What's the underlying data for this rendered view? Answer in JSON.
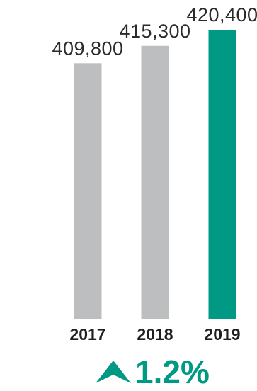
{
  "chart_data": {
    "type": "bar",
    "categories": [
      "2017",
      "2018",
      "2019"
    ],
    "values": [
      409800,
      415300,
      420400
    ],
    "value_labels": [
      "409,800",
      "415,300",
      "420,400"
    ],
    "bar_colors": [
      "#bcbec0",
      "#bcbec0",
      "#009a84"
    ],
    "ylim": [
      329000,
      420400
    ],
    "xlabel": "",
    "ylabel": "",
    "title": "",
    "grid": false,
    "legend": "none",
    "change": {
      "text": "1.2%",
      "direction": "up",
      "color": "#009a84",
      "icon": "up-arrow-icon"
    }
  }
}
